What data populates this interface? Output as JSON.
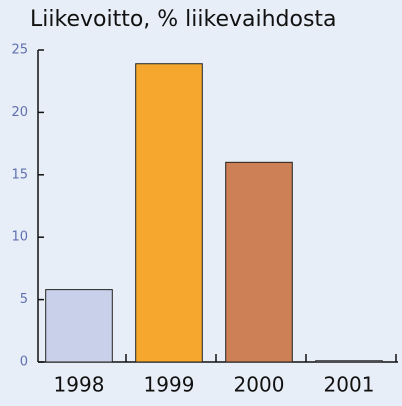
{
  "chart_data": {
    "type": "bar",
    "title": "Liikevoitto, % liikevaihdosta",
    "categories": [
      "1998",
      "1999",
      "2000",
      "2001"
    ],
    "values": [
      5.8,
      23.9,
      16,
      0.1
    ],
    "colors": [
      "#c9d1ea",
      "#f5a82d",
      "#cd7f55",
      "#c9d1ea"
    ],
    "ylim": [
      0,
      25
    ],
    "yticks": [
      0,
      5,
      10,
      15,
      20,
      25
    ],
    "grid": false
  }
}
